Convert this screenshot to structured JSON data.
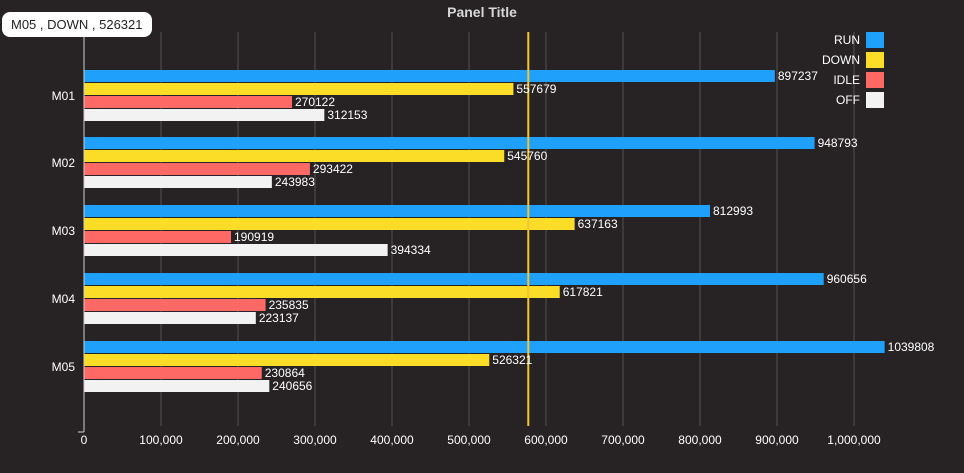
{
  "panel": {
    "title": "Panel Title"
  },
  "tooltip": {
    "text": "M05 , DOWN , 526321"
  },
  "colors": {
    "background": "#272324",
    "grid": "#555050",
    "axis": "#cfcfcf",
    "text": "#ffffff",
    "threshold": "#f2c531"
  },
  "chart_data": {
    "type": "bar",
    "orientation": "horizontal",
    "title": "Panel Title",
    "categories": [
      "M01",
      "M02",
      "M03",
      "M04",
      "M05"
    ],
    "series": [
      {
        "name": "RUN",
        "color": "#1fa0fb",
        "values": [
          897237,
          948793,
          812993,
          960656,
          1039808
        ]
      },
      {
        "name": "DOWN",
        "color": "#fbdd28",
        "values": [
          557679,
          545760,
          637163,
          617821,
          526321
        ]
      },
      {
        "name": "IDLE",
        "color": "#fe6966",
        "values": [
          270122,
          293422,
          190919,
          235835,
          230864
        ]
      },
      {
        "name": "OFF",
        "color": "#f2f2f2",
        "values": [
          312153,
          243983,
          394334,
          223137,
          240656
        ]
      }
    ],
    "xlim": [
      0,
      1000000
    ],
    "xticks": [
      0,
      100000,
      200000,
      300000,
      400000,
      500000,
      600000,
      700000,
      800000,
      900000,
      1000000
    ],
    "xtick_labels": [
      "0",
      "100,000",
      "200,000",
      "300,000",
      "400,000",
      "500,000",
      "600,000",
      "700,000",
      "800,000",
      "900,000",
      "1,000,000"
    ],
    "threshold": 577000,
    "grid": true,
    "legend_position": "top-right",
    "data_labels": true
  }
}
